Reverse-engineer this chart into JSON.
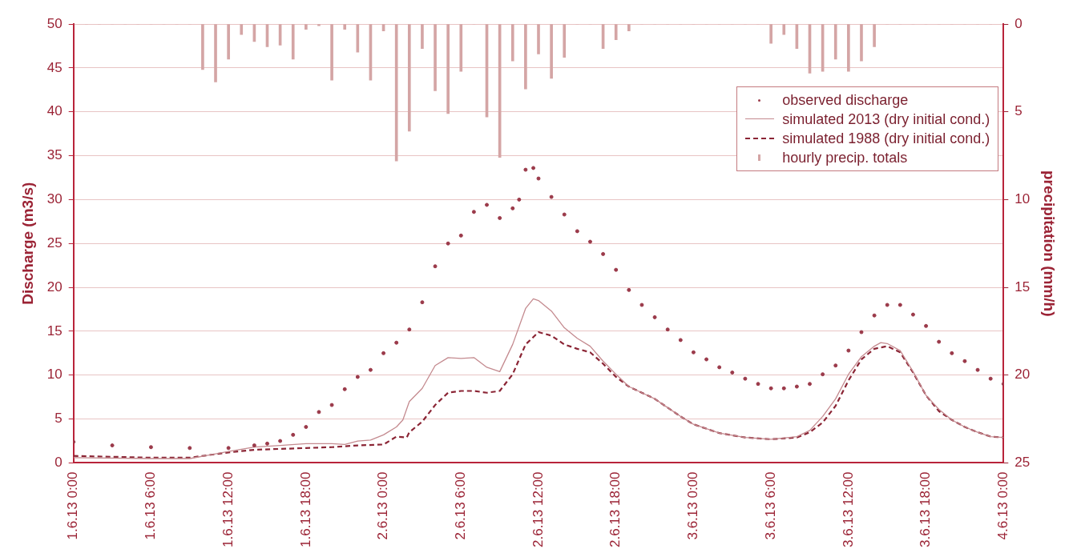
{
  "chart_data": {
    "type": "line",
    "ylabel": "Discharge (m3/s)",
    "y2label": "precipitation (mm/h)",
    "xlim": [
      "2013-06-01T00:00",
      "2013-06-04T00:00"
    ],
    "xticks": [
      {
        "value": "2013-06-01T00:00",
        "label": "1.6.13 0:00"
      },
      {
        "value": "2013-06-01T06:00",
        "label": "1.6.13 6:00"
      },
      {
        "value": "2013-06-01T12:00",
        "label": "1.6.13 12:00"
      },
      {
        "value": "2013-06-01T18:00",
        "label": "1.6.13 18:00"
      },
      {
        "value": "2013-06-02T00:00",
        "label": "2.6.13 0:00"
      },
      {
        "value": "2013-06-02T06:00",
        "label": "2.6.13 6:00"
      },
      {
        "value": "2013-06-02T12:00",
        "label": "2.6.13 12:00"
      },
      {
        "value": "2013-06-02T18:00",
        "label": "2.6.13 18:00"
      },
      {
        "value": "2013-06-03T00:00",
        "label": "3.6.13 0:00"
      },
      {
        "value": "2013-06-03T06:00",
        "label": "3.6.13 6:00"
      },
      {
        "value": "2013-06-03T12:00",
        "label": "3.6.13 12:00"
      },
      {
        "value": "2013-06-03T18:00",
        "label": "3.6.13 18:00"
      },
      {
        "value": "2013-06-04T00:00",
        "label": "4.6.13 0:00"
      }
    ],
    "ylim": [
      0,
      50
    ],
    "yticks": [
      0,
      5,
      10,
      15,
      20,
      25,
      30,
      35,
      40,
      45,
      50
    ],
    "y2lim": [
      25,
      0
    ],
    "y2ticks": [
      0,
      5,
      10,
      15,
      20,
      25
    ],
    "grid": "y",
    "legend": "top right",
    "series": [
      {
        "name": "observed discharge",
        "type": "scatter",
        "marker": "circle",
        "color": "#9b3a4a",
        "x": [
          "2013-06-01T00:00",
          "2013-06-01T03:00",
          "2013-06-01T06:00",
          "2013-06-01T09:00",
          "2013-06-01T12:00",
          "2013-06-01T14:00",
          "2013-06-01T15:00",
          "2013-06-01T16:00",
          "2013-06-01T17:00",
          "2013-06-01T18:00",
          "2013-06-01T19:00",
          "2013-06-01T20:00",
          "2013-06-01T21:00",
          "2013-06-01T22:00",
          "2013-06-01T23:00",
          "2013-06-02T00:00",
          "2013-06-02T01:00",
          "2013-06-02T02:00",
          "2013-06-02T03:00",
          "2013-06-02T04:00",
          "2013-06-02T05:00",
          "2013-06-02T06:00",
          "2013-06-02T07:00",
          "2013-06-02T08:00",
          "2013-06-02T09:00",
          "2013-06-02T10:00",
          "2013-06-02T10:30",
          "2013-06-02T11:00",
          "2013-06-02T11:36",
          "2013-06-02T12:00",
          "2013-06-02T13:00",
          "2013-06-02T14:00",
          "2013-06-02T15:00",
          "2013-06-02T16:00",
          "2013-06-02T17:00",
          "2013-06-02T18:00",
          "2013-06-02T19:00",
          "2013-06-02T20:00",
          "2013-06-02T21:00",
          "2013-06-02T22:00",
          "2013-06-02T23:00",
          "2013-06-03T00:00",
          "2013-06-03T01:00",
          "2013-06-03T02:00",
          "2013-06-03T03:00",
          "2013-06-03T04:00",
          "2013-06-03T05:00",
          "2013-06-03T06:00",
          "2013-06-03T07:00",
          "2013-06-03T08:00",
          "2013-06-03T09:00",
          "2013-06-03T10:00",
          "2013-06-03T11:00",
          "2013-06-03T12:00",
          "2013-06-03T13:00",
          "2013-06-03T14:00",
          "2013-06-03T15:00",
          "2013-06-03T16:00",
          "2013-06-03T17:00",
          "2013-06-03T18:00",
          "2013-06-03T19:00",
          "2013-06-03T20:00",
          "2013-06-03T21:00",
          "2013-06-03T22:00",
          "2013-06-03T23:00",
          "2013-06-04T00:00"
        ],
        "values": [
          2.4,
          2.0,
          1.8,
          1.7,
          1.7,
          2.0,
          2.2,
          2.5,
          3.2,
          4.1,
          5.8,
          6.6,
          8.4,
          9.8,
          10.6,
          12.5,
          13.7,
          15.2,
          18.3,
          22.4,
          25.0,
          25.9,
          28.6,
          29.4,
          27.9,
          29.0,
          30.0,
          33.4,
          33.6,
          32.4,
          30.3,
          28.3,
          26.4,
          25.2,
          23.8,
          22.0,
          19.7,
          18.0,
          16.6,
          15.2,
          14.0,
          12.6,
          11.8,
          10.9,
          10.3,
          9.6,
          9.0,
          8.5,
          8.5,
          8.7,
          9.0,
          10.1,
          11.1,
          12.8,
          14.9,
          16.8,
          18.0,
          18.0,
          16.9,
          15.6,
          13.8,
          12.5,
          11.6,
          10.6,
          9.6,
          9.0
        ]
      },
      {
        "name": "simulated 2013 (dry initial cond.)",
        "marker": "none",
        "line_style": "solid",
        "color": "#c48a8f",
        "x": [
          "2013-06-01T00:00",
          "2013-06-01T06:00",
          "2013-06-01T09:00",
          "2013-06-01T12:00",
          "2013-06-01T14:00",
          "2013-06-01T16:00",
          "2013-06-01T18:00",
          "2013-06-01T20:00",
          "2013-06-01T21:00",
          "2013-06-01T22:00",
          "2013-06-01T23:00",
          "2013-06-02T00:00",
          "2013-06-02T01:00",
          "2013-06-02T01:30",
          "2013-06-02T02:00",
          "2013-06-02T03:00",
          "2013-06-02T04:00",
          "2013-06-02T05:00",
          "2013-06-02T06:00",
          "2013-06-02T07:00",
          "2013-06-02T08:00",
          "2013-06-02T09:00",
          "2013-06-02T10:00",
          "2013-06-02T11:00",
          "2013-06-02T11:36",
          "2013-06-02T12:00",
          "2013-06-02T13:00",
          "2013-06-02T14:00",
          "2013-06-02T15:00",
          "2013-06-02T16:00",
          "2013-06-02T17:00",
          "2013-06-02T18:00",
          "2013-06-02T19:00",
          "2013-06-02T20:00",
          "2013-06-02T21:00",
          "2013-06-02T22:00",
          "2013-06-02T23:00",
          "2013-06-03T00:00",
          "2013-06-03T02:00",
          "2013-06-03T04:00",
          "2013-06-03T06:00",
          "2013-06-03T08:00",
          "2013-06-03T09:00",
          "2013-06-03T10:00",
          "2013-06-03T11:00",
          "2013-06-03T12:00",
          "2013-06-03T13:00",
          "2013-06-03T14:00",
          "2013-06-03T14:30",
          "2013-06-03T15:00",
          "2013-06-03T16:00",
          "2013-06-03T17:00",
          "2013-06-03T18:00",
          "2013-06-03T19:00",
          "2013-06-03T20:00",
          "2013-06-03T21:00",
          "2013-06-03T22:00",
          "2013-06-03T23:00",
          "2013-06-04T00:00"
        ],
        "values": [
          0.6,
          0.5,
          0.5,
          1.3,
          1.8,
          2.0,
          2.2,
          2.2,
          2.1,
          2.5,
          2.6,
          3.2,
          4.1,
          4.9,
          7.0,
          8.5,
          11.1,
          12.0,
          11.9,
          12.0,
          10.9,
          10.4,
          13.5,
          17.6,
          18.7,
          18.5,
          17.3,
          15.4,
          14.2,
          13.3,
          11.6,
          10.1,
          8.7,
          8.0,
          7.3,
          6.3,
          5.3,
          4.4,
          3.4,
          2.9,
          2.7,
          3.0,
          3.7,
          5.3,
          7.3,
          10.1,
          12.1,
          13.3,
          13.7,
          13.6,
          12.8,
          10.4,
          7.7,
          6.1,
          4.9,
          4.1,
          3.5,
          3.0,
          2.9
        ]
      },
      {
        "name": "simulated 1988 (dry initial cond.)",
        "marker": "none",
        "line_style": "dashed",
        "color": "#8b2535",
        "x": [
          "2013-06-01T00:00",
          "2013-06-01T03:00",
          "2013-06-01T06:00",
          "2013-06-01T09:00",
          "2013-06-01T11:00",
          "2013-06-01T12:00",
          "2013-06-01T14:00",
          "2013-06-01T16:00",
          "2013-06-01T18:00",
          "2013-06-01T20:00",
          "2013-06-01T22:00",
          "2013-06-02T00:00",
          "2013-06-02T01:00",
          "2013-06-02T01:48",
          "2013-06-02T02:00",
          "2013-06-02T03:00",
          "2013-06-02T04:00",
          "2013-06-02T05:00",
          "2013-06-02T06:00",
          "2013-06-02T07:00",
          "2013-06-02T08:00",
          "2013-06-02T09:00",
          "2013-06-02T10:00",
          "2013-06-02T11:00",
          "2013-06-02T12:00",
          "2013-06-02T13:00",
          "2013-06-02T14:00",
          "2013-06-02T15:00",
          "2013-06-02T16:00",
          "2013-06-02T17:00",
          "2013-06-02T18:00",
          "2013-06-02T19:00",
          "2013-06-02T20:00",
          "2013-06-02T21:00",
          "2013-06-02T22:00",
          "2013-06-02T23:00",
          "2013-06-03T00:00",
          "2013-06-03T02:00",
          "2013-06-03T04:00",
          "2013-06-03T06:00",
          "2013-06-03T08:00",
          "2013-06-03T09:00",
          "2013-06-03T10:00",
          "2013-06-03T11:00",
          "2013-06-03T12:00",
          "2013-06-03T13:00",
          "2013-06-03T14:00",
          "2013-06-03T15:00",
          "2013-06-03T16:00",
          "2013-06-03T17:00",
          "2013-06-03T18:00",
          "2013-06-03T19:00",
          "2013-06-03T20:00",
          "2013-06-03T21:00",
          "2013-06-03T22:00",
          "2013-06-03T23:00",
          "2013-06-04T00:00"
        ],
        "values": [
          0.8,
          0.7,
          0.6,
          0.6,
          1.0,
          1.2,
          1.5,
          1.6,
          1.7,
          1.8,
          2.0,
          2.1,
          3.0,
          2.9,
          3.5,
          4.7,
          6.6,
          8.0,
          8.2,
          8.2,
          8.0,
          8.2,
          10.1,
          13.5,
          14.9,
          14.5,
          13.5,
          13.0,
          12.6,
          11.3,
          9.8,
          8.7,
          8.0,
          7.3,
          6.3,
          5.3,
          4.4,
          3.4,
          2.9,
          2.7,
          2.9,
          3.5,
          4.6,
          6.5,
          9.4,
          11.8,
          13.0,
          13.3,
          12.6,
          10.3,
          7.7,
          5.9,
          4.9,
          4.1,
          3.5,
          3.0,
          2.9
        ]
      },
      {
        "name": "hourly precip. totals",
        "type": "bar",
        "axis": "y2",
        "color": "#d4a5a5",
        "x": [
          "2013-06-01T00:00",
          "2013-06-01T01:00",
          "2013-06-01T02:00",
          "2013-06-01T03:00",
          "2013-06-01T04:00",
          "2013-06-01T05:00",
          "2013-06-01T06:00",
          "2013-06-01T07:00",
          "2013-06-01T08:00",
          "2013-06-01T09:00",
          "2013-06-01T10:00",
          "2013-06-01T11:00",
          "2013-06-01T12:00",
          "2013-06-01T13:00",
          "2013-06-01T14:00",
          "2013-06-01T15:00",
          "2013-06-01T16:00",
          "2013-06-01T17:00",
          "2013-06-01T18:00",
          "2013-06-01T19:00",
          "2013-06-01T20:00",
          "2013-06-01T21:00",
          "2013-06-01T22:00",
          "2013-06-01T23:00",
          "2013-06-02T00:00",
          "2013-06-02T01:00",
          "2013-06-02T02:00",
          "2013-06-02T03:00",
          "2013-06-02T04:00",
          "2013-06-02T05:00",
          "2013-06-02T06:00",
          "2013-06-02T07:00",
          "2013-06-02T08:00",
          "2013-06-02T09:00",
          "2013-06-02T10:00",
          "2013-06-02T11:00",
          "2013-06-02T12:00",
          "2013-06-02T13:00",
          "2013-06-02T14:00",
          "2013-06-02T15:00",
          "2013-06-02T16:00",
          "2013-06-02T17:00",
          "2013-06-02T18:00",
          "2013-06-02T19:00",
          "2013-06-02T20:00",
          "2013-06-02T21:00",
          "2013-06-02T22:00",
          "2013-06-02T23:00",
          "2013-06-03T00:00",
          "2013-06-03T01:00",
          "2013-06-03T02:00",
          "2013-06-03T03:00",
          "2013-06-03T04:00",
          "2013-06-03T05:00",
          "2013-06-03T06:00",
          "2013-06-03T07:00",
          "2013-06-03T08:00",
          "2013-06-03T09:00",
          "2013-06-03T10:00",
          "2013-06-03T11:00",
          "2013-06-03T12:00",
          "2013-06-03T13:00",
          "2013-06-03T14:00",
          "2013-06-03T15:00",
          "2013-06-03T16:00",
          "2013-06-03T17:00",
          "2013-06-03T18:00",
          "2013-06-03T19:00",
          "2013-06-03T20:00",
          "2013-06-03T21:00",
          "2013-06-03T22:00",
          "2013-06-03T23:00"
        ],
        "values": [
          0,
          0,
          0,
          0,
          0,
          0,
          0,
          0,
          0,
          0,
          2.6,
          3.3,
          2.0,
          0.6,
          1.0,
          1.3,
          1.2,
          2.0,
          0.3,
          0.1,
          3.2,
          0.3,
          1.6,
          3.2,
          0.4,
          7.8,
          6.1,
          1.4,
          3.8,
          5.1,
          2.7,
          0,
          5.3,
          7.6,
          2.1,
          3.7,
          1.7,
          3.1,
          1.9,
          0,
          0,
          1.4,
          0.9,
          0.4,
          0,
          0,
          0,
          0,
          0,
          0,
          0,
          0,
          0,
          0,
          1.1,
          0.6,
          1.4,
          2.8,
          2.7,
          2.0,
          2.7,
          2.1,
          1.3,
          0,
          0,
          0,
          0,
          0,
          0,
          0,
          0,
          0
        ]
      }
    ]
  }
}
